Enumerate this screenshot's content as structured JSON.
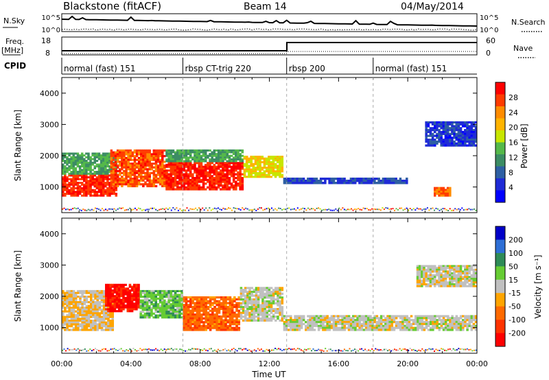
{
  "header": {
    "station": "Blackstone (fitACF)",
    "beam": "Beam 14",
    "date": "04/May/2014"
  },
  "summary": {
    "left_label_top": "N.Sky",
    "right_label_top": "N.Search",
    "top_ticks_left": [
      "10^5",
      "10^0"
    ],
    "top_ticks_right": [
      "10^5",
      "10^0"
    ],
    "freq_label": "Freq.",
    "freq_unit": "[MHz]",
    "freq_ticks": [
      "18",
      "8"
    ],
    "nave_label": "Nave",
    "nave_ticks": [
      "60",
      "0"
    ],
    "cpid_label": "CPID",
    "cpid_segments": [
      {
        "label": "normal (fast) 151",
        "start_hour": 0
      },
      {
        "label": "rbsp CT-trig 220",
        "start_hour": 7
      },
      {
        "label": "rbsp 200",
        "start_hour": 13
      },
      {
        "label": "normal (fast) 151",
        "start_hour": 18
      }
    ]
  },
  "axes": {
    "ylabel": "Slant Range [km]",
    "xlabel": "Time UT",
    "xticks": [
      "00:00",
      "04:00",
      "08:00",
      "12:00",
      "16:00",
      "20:00",
      "00:00"
    ],
    "yticks": [
      "1000",
      "2000",
      "3000",
      "4000"
    ]
  },
  "power_colorbar": {
    "label": "Power [dB]",
    "ticks": [
      "28",
      "24",
      "20",
      "16",
      "12",
      "8",
      "4"
    ],
    "colors": [
      "#ff0000",
      "#ff3c00",
      "#ff8c00",
      "#ffb400",
      "#c8e600",
      "#55b94a",
      "#3c8c64",
      "#2e5fa3",
      "#1f2bd6",
      "#0000ff"
    ]
  },
  "velocity_colorbar": {
    "label": "Velocity [m s⁻¹]",
    "ticks": [
      "200",
      "100",
      "50",
      "15",
      "-15",
      "-50",
      "-100",
      "-200"
    ],
    "colors": [
      "#0000c8",
      "#2e6fd6",
      "#2e8b57",
      "#66cc33",
      "#c0c0c0",
      "#ffa500",
      "#ff6a00",
      "#ff3300",
      "#ff0000"
    ]
  },
  "chart_data": [
    {
      "type": "heatmap",
      "title": "Power",
      "xlim": [
        0,
        24
      ],
      "ylim": [
        180,
        4500
      ],
      "xlabel": "Time UT",
      "ylabel": "Slant Range [km]",
      "colorbar_label": "Power [dB]",
      "colorbar_range": [
        0,
        30
      ],
      "regions": [
        {
          "t0": 0.0,
          "t1": 3.2,
          "r0": 700,
          "r1": 1400,
          "value": 27
        },
        {
          "t0": 0.0,
          "t1": 3.2,
          "r0": 1400,
          "r1": 2100,
          "value": 12
        },
        {
          "t0": 2.8,
          "t1": 6.0,
          "r0": 1000,
          "r1": 2200,
          "value": 25
        },
        {
          "t0": 6.0,
          "t1": 10.5,
          "r0": 900,
          "r1": 1800,
          "value": 27
        },
        {
          "t0": 6.0,
          "t1": 10.5,
          "r0": 1800,
          "r1": 2200,
          "value": 12
        },
        {
          "t0": 10.5,
          "t1": 12.8,
          "r0": 1300,
          "r1": 2000,
          "value": 18
        },
        {
          "t0": 12.8,
          "t1": 20.0,
          "r0": 1100,
          "r1": 1300,
          "value": 6
        },
        {
          "t0": 21.0,
          "t1": 24.0,
          "r0": 2300,
          "r1": 3100,
          "value": 5
        },
        {
          "t0": 21.5,
          "t1": 22.5,
          "r0": 700,
          "r1": 1000,
          "value": 24
        }
      ]
    },
    {
      "type": "heatmap",
      "title": "Velocity",
      "xlim": [
        0,
        24
      ],
      "ylim": [
        180,
        4500
      ],
      "xlabel": "Time UT",
      "ylabel": "Slant Range [km]",
      "colorbar_label": "Velocity [m s⁻¹]",
      "colorbar_range": [
        -250,
        250
      ],
      "regions": [
        {
          "t0": 0.0,
          "t1": 3.0,
          "r0": 900,
          "r1": 2200,
          "value": -30
        },
        {
          "t0": 2.5,
          "t1": 4.5,
          "r0": 1500,
          "r1": 2400,
          "value": -220
        },
        {
          "t0": 4.5,
          "t1": 7.0,
          "r0": 1300,
          "r1": 2200,
          "value": 60
        },
        {
          "t0": 7.0,
          "t1": 10.3,
          "r0": 900,
          "r1": 2000,
          "value": -120
        },
        {
          "t0": 10.3,
          "t1": 12.8,
          "r0": 1200,
          "r1": 2300,
          "value": 0
        },
        {
          "t0": 12.8,
          "t1": 24.0,
          "r0": 900,
          "r1": 1400,
          "value": 0
        },
        {
          "t0": 20.5,
          "t1": 24.0,
          "r0": 2300,
          "r1": 3000,
          "value": 0
        }
      ]
    }
  ]
}
